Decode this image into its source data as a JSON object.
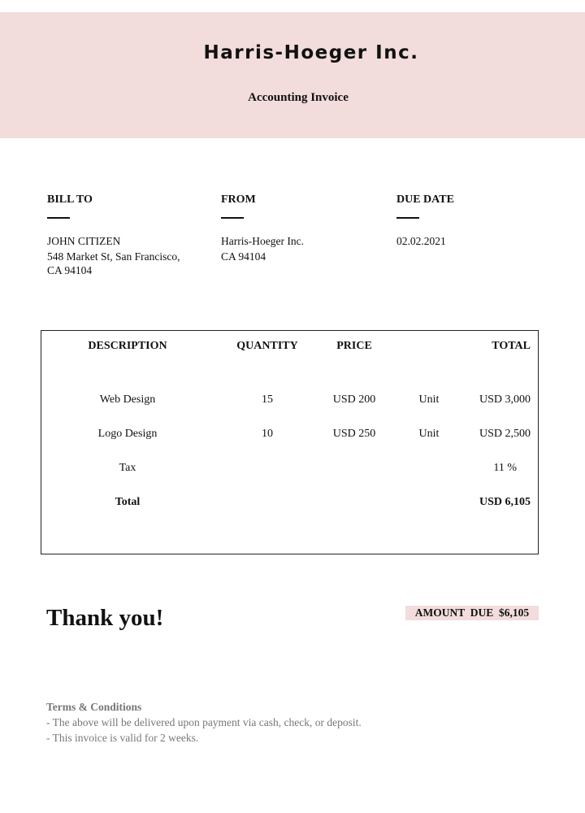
{
  "header": {
    "company": "Harris-Hoeger Inc.",
    "subtitle": "Accounting Invoice",
    "band_color": "#f2dcdc"
  },
  "bill_to": {
    "label": "BILL TO",
    "name": "JOHN CITIZEN",
    "address_line1": "548 Market St, San Francisco,",
    "address_line2": "CA 94104"
  },
  "from": {
    "label": "FROM",
    "name": "Harris-Hoeger Inc.",
    "address": "CA 94104"
  },
  "due_date": {
    "label": "DUE DATE",
    "value": "02.02.2021"
  },
  "table": {
    "headers": {
      "description": "DESCRIPTION",
      "quantity": "QUANTITY",
      "price": "PRICE",
      "total": "TOTAL"
    },
    "rows": [
      {
        "description": "Web Design",
        "quantity": "15",
        "price": "USD 200",
        "unit": "Unit",
        "total": "USD 3,000"
      },
      {
        "description": "Logo Design",
        "quantity": "10",
        "price": "USD 250",
        "unit": "Unit",
        "total": "USD 2,500"
      }
    ],
    "tax": {
      "label": "Tax",
      "value": "11 %"
    },
    "grand_total": {
      "label": "Total",
      "value": "USD 6,105"
    }
  },
  "footer": {
    "thanks": "Thank you!",
    "amount_due": "AMOUNT  DUE  $6,105",
    "terms_title": "Terms & Conditions",
    "terms": [
      "- The above will be delivered upon payment via cash, check, or deposit.",
      "- This invoice is valid for 2 weeks."
    ]
  }
}
